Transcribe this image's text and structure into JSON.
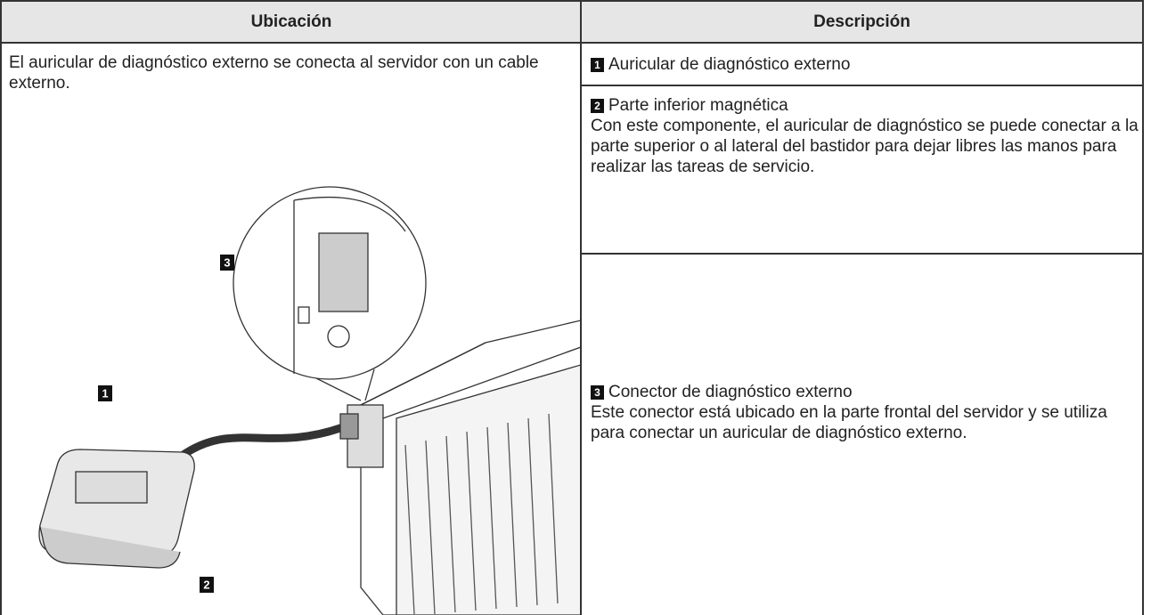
{
  "table": {
    "headers": [
      "Ubicación",
      "Descripción"
    ],
    "location_text": "El auricular de diagnóstico externo se conecta al servidor con un cable externo.",
    "figure_callouts": [
      "3",
      "1",
      "2"
    ],
    "rows": [
      {
        "number": "1",
        "title": "Auricular de diagnóstico externo"
      },
      {
        "number": "2",
        "title": "Parte inferior magnética",
        "description": "Con este componente, el auricular de diagnóstico se puede conectar a la parte superior o al lateral del bastidor para dejar libres las manos para realizar las tareas de servicio."
      },
      {
        "number": "3",
        "title": "Conector de diagnóstico externo",
        "description": "Este conector está ubicado en la parte frontal del servidor y se utiliza para conectar un auricular de diagnóstico externo."
      }
    ]
  }
}
